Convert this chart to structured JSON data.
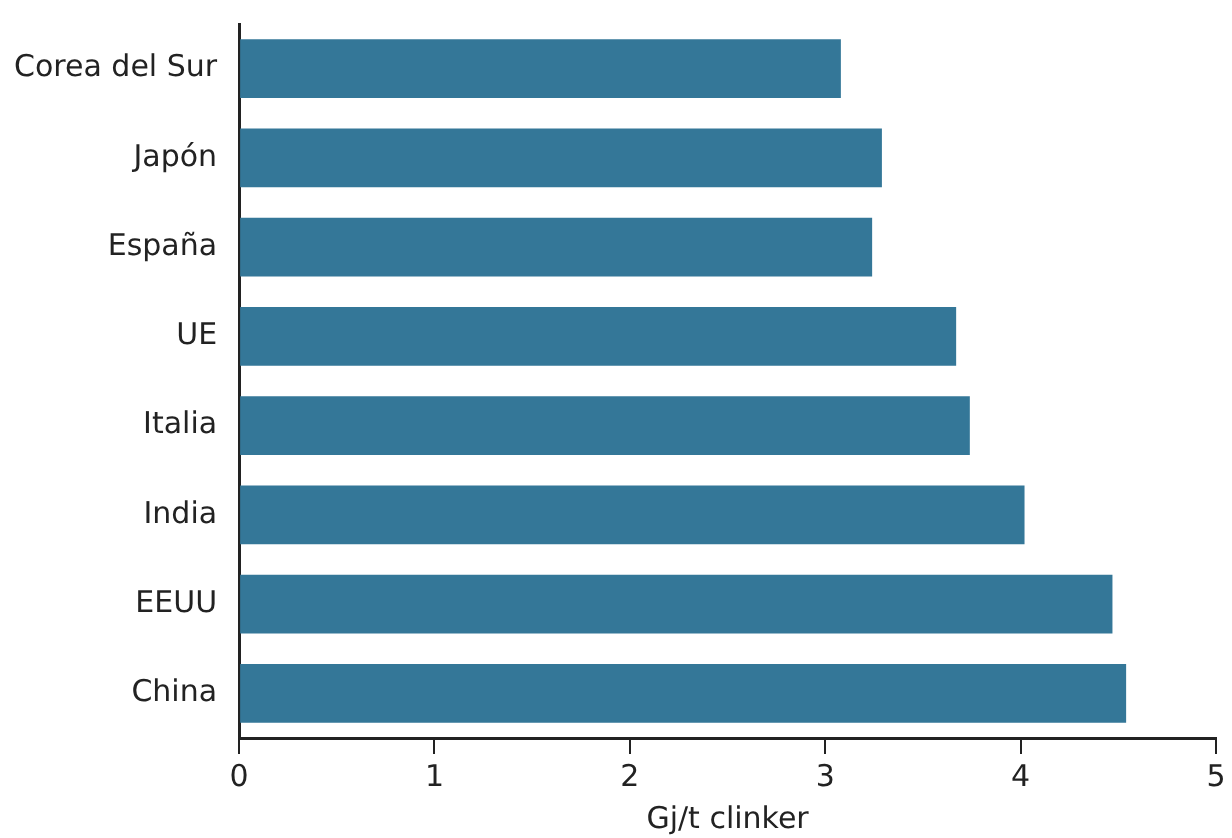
{
  "chart_data": {
    "type": "bar",
    "orientation": "horizontal",
    "xlabel": "Gj/t clinker",
    "categories": [
      "Corea del Sur",
      "Japón",
      "España",
      "UE",
      "Italia",
      "India",
      "EEUU",
      "China"
    ],
    "values": [
      3.08,
      3.29,
      3.24,
      3.67,
      3.74,
      4.02,
      4.47,
      4.54
    ],
    "color": "#347798",
    "xlim": [
      0,
      5
    ],
    "xticks": [
      0,
      1,
      2,
      3,
      4,
      5
    ],
    "grid": false,
    "legend": false
  }
}
